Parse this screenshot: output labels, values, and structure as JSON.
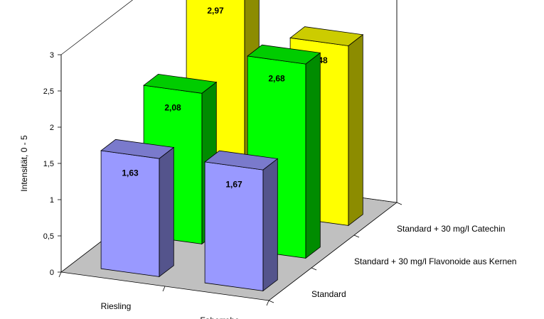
{
  "chart_data": {
    "type": "bar",
    "subtype": "3d-clustered",
    "categories": [
      "Riesling",
      "Faberrebe"
    ],
    "series": [
      {
        "name": "Standard",
        "values": [
          1.63,
          1.67
        ],
        "color": "#9999ff"
      },
      {
        "name": "Standard + 30 mg/l Flavonoide aus Kernen",
        "values": [
          2.08,
          2.68
        ],
        "color": "#00ff00"
      },
      {
        "name": "Standard + 30 mg/l Catechin",
        "values": [
          2.97,
          2.48
        ],
        "color": "#ffff00"
      }
    ],
    "value_labels": [
      [
        "1,63",
        "1,67"
      ],
      [
        "2,08",
        "2,68"
      ],
      [
        "2,97",
        "2,48"
      ]
    ],
    "ylabel": "Intensität, 0 - 5",
    "ylim": [
      0,
      3
    ],
    "yticks": [
      "0",
      "0,5",
      "1",
      "1,5",
      "2",
      "2,5",
      "3"
    ],
    "grid": false,
    "floor_color": "#c0c0c0"
  }
}
